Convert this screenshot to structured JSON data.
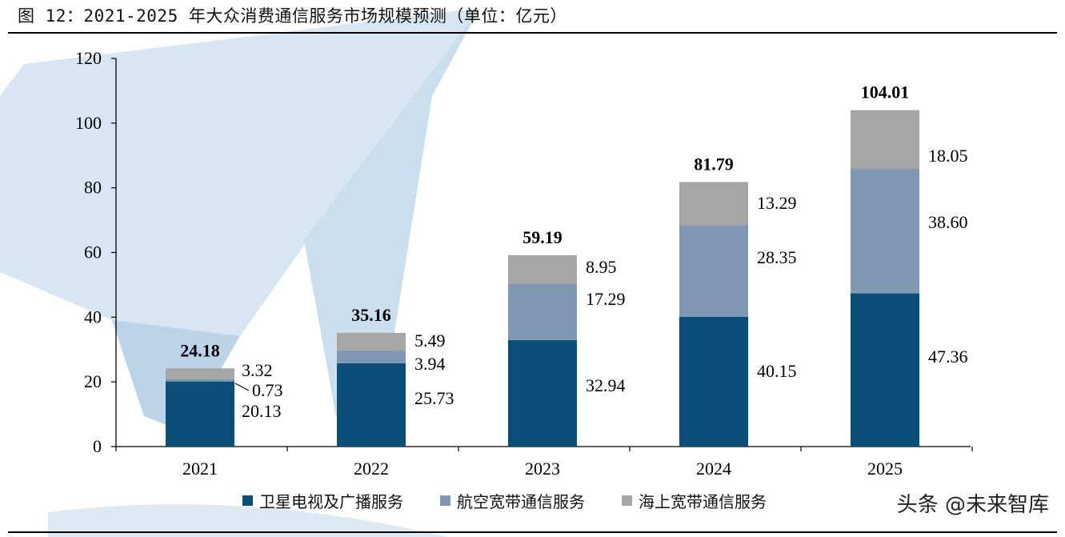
{
  "header": {
    "title": "图 12：2021-2025 年大众消费通信服务市场规模预测（单位：亿元）"
  },
  "watermark": {
    "icon": "paper-plane-watermark-icon",
    "color": "#cfe1ef"
  },
  "credit": {
    "text": "头条 @未来智库"
  },
  "chart_data": {
    "type": "bar",
    "stacked": true,
    "categories": [
      "2021",
      "2022",
      "2023",
      "2024",
      "2025"
    ],
    "series": [
      {
        "name": "卫星电视及广播服务",
        "color": "#0a4f79",
        "values": [
          20.13,
          25.73,
          32.94,
          40.15,
          47.36
        ],
        "labels": [
          "20.13",
          "25.73",
          "32.94",
          "40.15",
          "47.36"
        ]
      },
      {
        "name": "航空宽带通信服务",
        "color": "#8098b4",
        "values": [
          0.73,
          3.94,
          17.29,
          28.35,
          38.6
        ],
        "labels": [
          "0.73",
          "3.94",
          "17.29",
          "28.35",
          "38.60"
        ]
      },
      {
        "name": "海上宽带通信服务",
        "color": "#a6a6a6",
        "values": [
          3.32,
          5.49,
          8.95,
          13.29,
          18.05
        ],
        "labels": [
          "3.32",
          "5.49",
          "8.95",
          "13.29",
          "18.05"
        ]
      }
    ],
    "totals": [
      24.18,
      35.16,
      59.19,
      81.79,
      104.01
    ],
    "total_labels": [
      "24.18",
      "35.16",
      "59.19",
      "81.79",
      "104.01"
    ],
    "ylim": [
      0,
      120
    ],
    "yticks": [
      0,
      20,
      40,
      60,
      80,
      100,
      120
    ],
    "grid": false,
    "legend_position": "bottom"
  }
}
